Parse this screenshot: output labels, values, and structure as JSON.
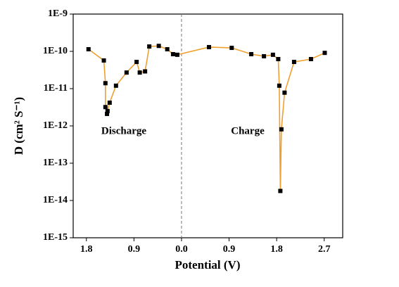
{
  "chart_data": {
    "type": "line",
    "xlabel": "Potential (V)",
    "ylabel": "D (cm² S⁻¹)",
    "annotations": [
      "Discharge",
      "Charge"
    ],
    "x": [
      -1.76,
      -1.47,
      -1.44,
      -1.44,
      -1.41,
      -1.4,
      -1.36,
      -1.24,
      -1.04,
      -0.85,
      -0.79,
      -0.69,
      -0.61,
      -0.43,
      -0.27,
      -0.16,
      -0.08,
      0.52,
      0.95,
      1.32,
      1.56,
      1.73,
      1.83,
      1.85,
      1.87,
      1.89,
      1.95,
      2.13,
      2.45,
      2.71
    ],
    "series": [
      {
        "color": "#f0a030",
        "marker_color": "#000000",
        "values": [
          1.14e-10,
          5.7e-11,
          1.4e-11,
          3.2e-12,
          2.1e-12,
          2.5e-12,
          4.2e-12,
          1.2e-11,
          2.7e-11,
          5.2e-11,
          2.7e-11,
          2.9e-11,
          1.35e-10,
          1.4e-10,
          1.14e-10,
          8.4e-11,
          8.1e-11,
          1.3e-10,
          1.24e-10,
          8.4e-11,
          7.4e-11,
          8.1e-11,
          6.2e-11,
          1.2e-11,
          1.8e-14,
          8.1e-13,
          7.8e-12,
          5.2e-11,
          6.2e-11,
          9.1e-11
        ]
      }
    ],
    "xlim": [
      -2.05,
      3.05
    ],
    "xticks": [
      {
        "value": -1.8,
        "label": "1.8"
      },
      {
        "value": -0.9,
        "label": "0.9"
      },
      {
        "value": 0,
        "label": "0.0"
      },
      {
        "value": 0.9,
        "label": "0.9"
      },
      {
        "value": 1.8,
        "label": "1.8"
      },
      {
        "value": 2.7,
        "label": "2.7"
      }
    ],
    "ylim": [
      1e-15,
      1e-09
    ],
    "yticks": [
      {
        "value": 1e-15,
        "label": "1E-15"
      },
      {
        "value": 1e-14,
        "label": "1E-14"
      },
      {
        "value": 1e-13,
        "label": "1E-13"
      },
      {
        "value": 1e-12,
        "label": "1E-12"
      },
      {
        "value": 1e-11,
        "label": "1E-11"
      },
      {
        "value": 1e-10,
        "label": "1E-10"
      },
      {
        "value": 1e-09,
        "label": "1E-9"
      }
    ],
    "log_y": true,
    "reference_line_x": 0
  }
}
